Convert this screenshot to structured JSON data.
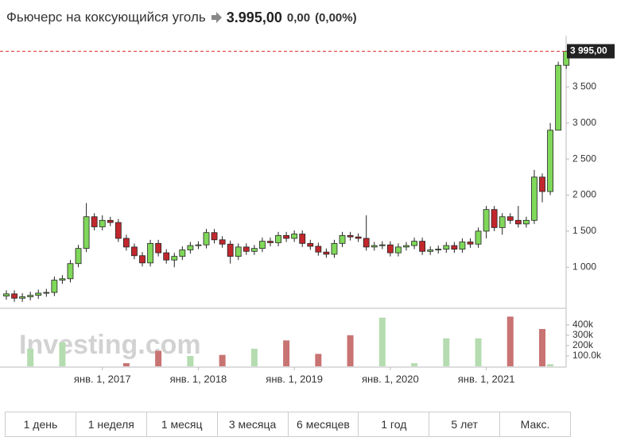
{
  "header": {
    "title": "Фьючерс на коксующийся уголь",
    "price": "3.995,00",
    "change": "0,00",
    "change_percent": "(0,00%)"
  },
  "chart_data": {
    "type": "candlestick",
    "categories": [
      null,
      null,
      null,
      null,
      null,
      null,
      null,
      null,
      null,
      null,
      null,
      null,
      "янв. 1, 2017",
      null,
      null,
      null,
      null,
      null,
      null,
      null,
      null,
      null,
      null,
      null,
      "янв. 1, 2018",
      null,
      null,
      null,
      null,
      null,
      null,
      null,
      null,
      null,
      null,
      null,
      "янв. 1, 2019",
      null,
      null,
      null,
      null,
      null,
      null,
      null,
      null,
      null,
      null,
      null,
      "янв. 1, 2020",
      null,
      null,
      null,
      null,
      null,
      null,
      null,
      null,
      null,
      null,
      null,
      "янв. 1, 2021",
      null,
      null,
      null,
      null,
      null,
      null,
      null,
      null,
      null,
      null
    ],
    "open": [
      600,
      630,
      570,
      590,
      610,
      640,
      650,
      820,
      840,
      1050,
      1260,
      1700,
      1560,
      1650,
      1620,
      1400,
      1280,
      1160,
      1060,
      1330,
      1200,
      1100,
      1150,
      1240,
      1300,
      1310,
      1480,
      1380,
      1320,
      1150,
      1280,
      1220,
      1260,
      1360,
      1340,
      1440,
      1400,
      1460,
      1330,
      1290,
      1210,
      1180,
      1330,
      1440,
      1420,
      1400,
      1280,
      1300,
      1310,
      1200,
      1280,
      1300,
      1360,
      1220,
      1240,
      1250,
      1300,
      1250,
      1350,
      1320,
      1500,
      1800,
      1550,
      1700,
      1650,
      1600,
      1650,
      2250,
      2050,
      2900,
      3800
    ],
    "high": [
      680,
      680,
      640,
      660,
      690,
      700,
      870,
      890,
      1100,
      1310,
      1890,
      1750,
      1720,
      1700,
      1670,
      1450,
      1330,
      1210,
      1380,
      1380,
      1250,
      1200,
      1290,
      1350,
      1360,
      1530,
      1530,
      1430,
      1370,
      1330,
      1330,
      1310,
      1410,
      1410,
      1490,
      1490,
      1510,
      1510,
      1380,
      1340,
      1260,
      1380,
      1490,
      1490,
      1470,
      1720,
      1350,
      1360,
      1360,
      1330,
      1350,
      1410,
      1410,
      1290,
      1300,
      1350,
      1350,
      1400,
      1400,
      1550,
      1850,
      1850,
      1750,
      1750,
      1850,
      1700,
      2350,
      2300,
      3000,
      3850,
      4000
    ],
    "low": [
      550,
      520,
      520,
      540,
      560,
      590,
      600,
      770,
      790,
      1000,
      1210,
      1510,
      1510,
      1570,
      1350,
      1230,
      1110,
      1010,
      1010,
      1150,
      1050,
      1000,
      1100,
      1190,
      1250,
      1260,
      1330,
      1270,
      1050,
      1100,
      1170,
      1170,
      1210,
      1290,
      1290,
      1350,
      1350,
      1280,
      1240,
      1160,
      1130,
      1130,
      1280,
      1370,
      1350,
      1230,
      1230,
      1250,
      1150,
      1150,
      1230,
      1250,
      1170,
      1170,
      1190,
      1200,
      1200,
      1200,
      1270,
      1270,
      1400,
      1500,
      1450,
      1600,
      1550,
      1550,
      1600,
      1900,
      2000,
      2900,
      3750
    ],
    "close": [
      630,
      570,
      590,
      610,
      640,
      650,
      820,
      840,
      1050,
      1260,
      1700,
      1560,
      1650,
      1620,
      1400,
      1280,
      1160,
      1060,
      1330,
      1200,
      1100,
      1150,
      1240,
      1300,
      1310,
      1480,
      1380,
      1320,
      1150,
      1280,
      1220,
      1260,
      1360,
      1340,
      1440,
      1400,
      1460,
      1330,
      1290,
      1210,
      1180,
      1330,
      1440,
      1420,
      1400,
      1280,
      1300,
      1310,
      1200,
      1280,
      1300,
      1360,
      1220,
      1240,
      1250,
      1300,
      1250,
      1350,
      1320,
      1500,
      1800,
      1550,
      1700,
      1650,
      1600,
      1650,
      2250,
      2050,
      2900,
      3800,
      3995
    ],
    "up_color": "#80d85a",
    "down_color": "#c1272d",
    "ylim": [
      430,
      4210
    ],
    "yticks": [
      {
        "value": 1000,
        "label": "1 000"
      },
      {
        "value": 1500,
        "label": "1 500"
      },
      {
        "value": 2000,
        "label": "2 000"
      },
      {
        "value": 2500,
        "label": "2 500"
      },
      {
        "value": 3000,
        "label": "3 000"
      },
      {
        "value": 3500,
        "label": "3 500"
      }
    ],
    "last_price": {
      "value": 3995,
      "label": "3 995,00"
    },
    "volume": {
      "values": [
        null,
        null,
        null,
        170000,
        null,
        null,
        null,
        230000,
        null,
        null,
        null,
        null,
        null,
        null,
        null,
        30000,
        null,
        null,
        null,
        150000,
        null,
        null,
        null,
        100000,
        null,
        null,
        null,
        110000,
        null,
        null,
        null,
        170000,
        null,
        null,
        null,
        250000,
        null,
        null,
        null,
        120000,
        null,
        null,
        null,
        300000,
        null,
        null,
        null,
        470000,
        null,
        null,
        null,
        30000,
        null,
        null,
        null,
        270000,
        null,
        null,
        null,
        270000,
        null,
        null,
        null,
        480000,
        null,
        null,
        null,
        360000,
        20000,
        null,
        null
      ],
      "ylim": [
        0,
        560000
      ],
      "yticks": [
        {
          "value": 100000,
          "label": "100.0k"
        },
        {
          "value": 200000,
          "label": "200k"
        },
        {
          "value": 300000,
          "label": "300k"
        },
        {
          "value": 400000,
          "label": "400k"
        }
      ]
    },
    "watermark": "Investing.com"
  },
  "range_buttons": [
    "1 день",
    "1 неделя",
    "1 месяц",
    "3 месяца",
    "6 месяцев",
    "1 год",
    "5 лет",
    "Макс."
  ]
}
